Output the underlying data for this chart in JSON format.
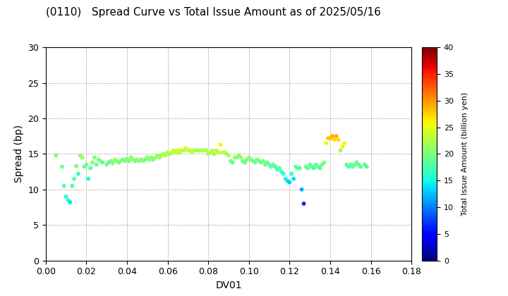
{
  "title": "(0110)   Spread Curve vs Total Issue Amount as of 2025/05/16",
  "xlabel": "DV01",
  "ylabel": "Spread (bp)",
  "colorbar_label": "Total Issue Amount (billion yen)",
  "xlim": [
    0.0,
    0.18
  ],
  "ylim": [
    0,
    30
  ],
  "xticks": [
    0.0,
    0.02,
    0.04,
    0.06,
    0.08,
    0.1,
    0.12,
    0.14,
    0.16,
    0.18
  ],
  "yticks": [
    0,
    5,
    10,
    15,
    20,
    25,
    30
  ],
  "colorbar_ticks": [
    0,
    5,
    10,
    15,
    20,
    25,
    30,
    35,
    40
  ],
  "clim": [
    0,
    40
  ],
  "points": [
    [
      0.005,
      14.8,
      20
    ],
    [
      0.008,
      13.2,
      19
    ],
    [
      0.009,
      10.5,
      18
    ],
    [
      0.01,
      9.0,
      16
    ],
    [
      0.011,
      8.5,
      16
    ],
    [
      0.012,
      8.2,
      14
    ],
    [
      0.013,
      10.5,
      17
    ],
    [
      0.014,
      11.5,
      18
    ],
    [
      0.015,
      13.3,
      20
    ],
    [
      0.016,
      12.2,
      17
    ],
    [
      0.017,
      14.8,
      21
    ],
    [
      0.018,
      14.5,
      21
    ],
    [
      0.019,
      13.2,
      19
    ],
    [
      0.02,
      13.5,
      20
    ],
    [
      0.021,
      11.5,
      15
    ],
    [
      0.022,
      13.0,
      18
    ],
    [
      0.023,
      13.8,
      20
    ],
    [
      0.024,
      14.5,
      20
    ],
    [
      0.025,
      13.5,
      19
    ],
    [
      0.026,
      14.2,
      20
    ],
    [
      0.027,
      14.0,
      20
    ],
    [
      0.028,
      13.8,
      19
    ],
    [
      0.03,
      13.5,
      19
    ],
    [
      0.031,
      13.8,
      19
    ],
    [
      0.032,
      14.0,
      20
    ],
    [
      0.033,
      13.7,
      20
    ],
    [
      0.034,
      14.2,
      21
    ],
    [
      0.035,
      14.0,
      20
    ],
    [
      0.036,
      13.8,
      20
    ],
    [
      0.037,
      14.0,
      20
    ],
    [
      0.038,
      14.2,
      20
    ],
    [
      0.039,
      14.0,
      20
    ],
    [
      0.04,
      14.3,
      20
    ],
    [
      0.041,
      14.0,
      20
    ],
    [
      0.042,
      14.5,
      21
    ],
    [
      0.043,
      14.2,
      20
    ],
    [
      0.044,
      14.0,
      20
    ],
    [
      0.045,
      14.2,
      21
    ],
    [
      0.046,
      14.0,
      20
    ],
    [
      0.047,
      14.2,
      21
    ],
    [
      0.048,
      14.0,
      20
    ],
    [
      0.049,
      14.2,
      20
    ],
    [
      0.05,
      14.5,
      21
    ],
    [
      0.051,
      14.2,
      20
    ],
    [
      0.052,
      14.5,
      21
    ],
    [
      0.053,
      14.2,
      20
    ],
    [
      0.054,
      14.5,
      21
    ],
    [
      0.055,
      14.8,
      22
    ],
    [
      0.056,
      14.5,
      21
    ],
    [
      0.057,
      14.8,
      22
    ],
    [
      0.058,
      15.0,
      22
    ],
    [
      0.059,
      14.8,
      22
    ],
    [
      0.06,
      15.2,
      23
    ],
    [
      0.061,
      15.0,
      22
    ],
    [
      0.062,
      15.2,
      23
    ],
    [
      0.063,
      15.5,
      23
    ],
    [
      0.064,
      15.2,
      23
    ],
    [
      0.065,
      15.5,
      24
    ],
    [
      0.066,
      15.2,
      23
    ],
    [
      0.067,
      15.5,
      23
    ],
    [
      0.068,
      15.5,
      23
    ],
    [
      0.069,
      15.8,
      24
    ],
    [
      0.07,
      15.5,
      23
    ],
    [
      0.071,
      15.5,
      23
    ],
    [
      0.072,
      15.3,
      23
    ],
    [
      0.073,
      15.5,
      23
    ],
    [
      0.074,
      15.5,
      22
    ],
    [
      0.075,
      15.5,
      22
    ],
    [
      0.076,
      15.5,
      22
    ],
    [
      0.077,
      15.5,
      23
    ],
    [
      0.078,
      15.5,
      23
    ],
    [
      0.079,
      15.5,
      22
    ],
    [
      0.08,
      15.0,
      22
    ],
    [
      0.081,
      15.2,
      22
    ],
    [
      0.082,
      15.5,
      23
    ],
    [
      0.083,
      15.0,
      22
    ],
    [
      0.084,
      15.5,
      23
    ],
    [
      0.085,
      15.2,
      23
    ],
    [
      0.086,
      16.3,
      26
    ],
    [
      0.087,
      15.2,
      23
    ],
    [
      0.088,
      15.2,
      23
    ],
    [
      0.089,
      15.0,
      22
    ],
    [
      0.09,
      14.8,
      22
    ],
    [
      0.091,
      14.0,
      19
    ],
    [
      0.092,
      13.8,
      19
    ],
    [
      0.093,
      14.5,
      22
    ],
    [
      0.094,
      14.5,
      20
    ],
    [
      0.095,
      14.8,
      21
    ],
    [
      0.096,
      14.5,
      21
    ],
    [
      0.097,
      14.0,
      19
    ],
    [
      0.098,
      13.8,
      19
    ],
    [
      0.099,
      14.2,
      20
    ],
    [
      0.1,
      14.5,
      21
    ],
    [
      0.101,
      14.2,
      20
    ],
    [
      0.102,
      14.0,
      19
    ],
    [
      0.103,
      13.8,
      19
    ],
    [
      0.104,
      14.2,
      20
    ],
    [
      0.105,
      14.0,
      19
    ],
    [
      0.106,
      13.8,
      19
    ],
    [
      0.107,
      14.0,
      20
    ],
    [
      0.108,
      13.5,
      19
    ],
    [
      0.109,
      13.8,
      19
    ],
    [
      0.11,
      13.5,
      19
    ],
    [
      0.111,
      13.2,
      18
    ],
    [
      0.112,
      13.5,
      19
    ],
    [
      0.113,
      13.2,
      18
    ],
    [
      0.114,
      12.8,
      17
    ],
    [
      0.115,
      13.0,
      18
    ],
    [
      0.116,
      12.5,
      17
    ],
    [
      0.117,
      12.2,
      16
    ],
    [
      0.118,
      11.5,
      15
    ],
    [
      0.119,
      11.2,
      14
    ],
    [
      0.12,
      11.0,
      13
    ],
    [
      0.121,
      12.2,
      16
    ],
    [
      0.122,
      11.5,
      14
    ],
    [
      0.123,
      13.2,
      19
    ],
    [
      0.124,
      13.0,
      18
    ],
    [
      0.125,
      13.0,
      18
    ],
    [
      0.126,
      10.0,
      12
    ],
    [
      0.127,
      8.0,
      7
    ],
    [
      0.128,
      13.2,
      19
    ],
    [
      0.129,
      13.0,
      18
    ],
    [
      0.13,
      13.5,
      19
    ],
    [
      0.131,
      13.2,
      19
    ],
    [
      0.132,
      13.0,
      18
    ],
    [
      0.133,
      13.5,
      18
    ],
    [
      0.134,
      13.2,
      19
    ],
    [
      0.135,
      13.0,
      18
    ],
    [
      0.136,
      13.5,
      19
    ],
    [
      0.137,
      13.8,
      20
    ],
    [
      0.138,
      16.5,
      25
    ],
    [
      0.139,
      17.2,
      28
    ],
    [
      0.14,
      17.2,
      28
    ],
    [
      0.141,
      17.5,
      29
    ],
    [
      0.142,
      17.0,
      27
    ],
    [
      0.143,
      17.5,
      29
    ],
    [
      0.144,
      17.0,
      27
    ],
    [
      0.145,
      15.5,
      22
    ],
    [
      0.146,
      16.0,
      25
    ],
    [
      0.147,
      16.5,
      26
    ],
    [
      0.148,
      13.5,
      19
    ],
    [
      0.149,
      13.2,
      18
    ],
    [
      0.15,
      13.5,
      19
    ],
    [
      0.151,
      13.2,
      18
    ],
    [
      0.152,
      13.5,
      19
    ],
    [
      0.153,
      13.8,
      19
    ],
    [
      0.154,
      13.5,
      19
    ],
    [
      0.155,
      13.2,
      18
    ],
    [
      0.157,
      13.5,
      19
    ],
    [
      0.158,
      13.2,
      18
    ]
  ],
  "colormap": "jet",
  "marker_size": 18,
  "background_color": "#ffffff",
  "grid_color": "#888888",
  "grid_style": ":"
}
